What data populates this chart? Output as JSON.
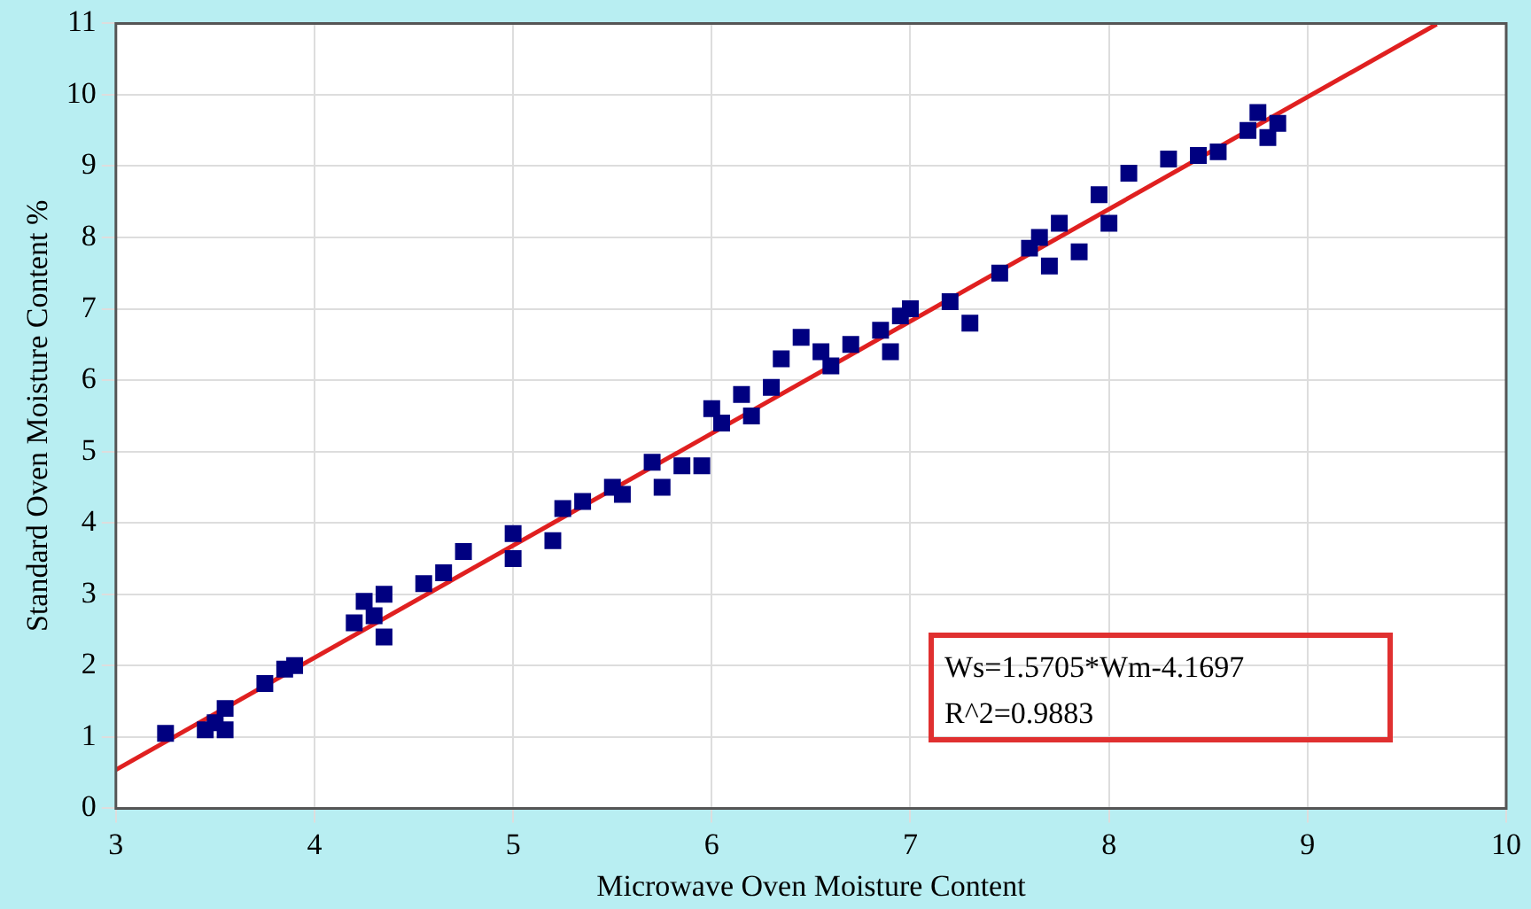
{
  "chart_data": {
    "type": "scatter",
    "xlabel": "Microwave Oven Moisture Content",
    "ylabel": "Standard Oven Moisture Content %",
    "xlim": [
      3,
      10
    ],
    "xticks": [
      3,
      4,
      5,
      6,
      7,
      8,
      9,
      10
    ],
    "ylim": [
      0,
      11
    ],
    "yticks": [
      0,
      1,
      2,
      3,
      4,
      5,
      6,
      7,
      8,
      9,
      10,
      11
    ],
    "grid": true,
    "legend": false,
    "annotations": [
      "Ws=1.5705*Wm-4.1697",
      "R^2=0.9883"
    ],
    "series": [
      {
        "marker": "square",
        "color": "#000080",
        "x": [
          3.25,
          3.45,
          3.5,
          3.55,
          3.55,
          3.75,
          3.85,
          3.9,
          4.2,
          4.25,
          4.3,
          4.35,
          4.35,
          4.55,
          4.65,
          4.75,
          5.0,
          5.0,
          5.2,
          5.25,
          5.35,
          5.5,
          5.55,
          5.7,
          5.75,
          5.85,
          5.95,
          6.0,
          6.05,
          6.15,
          6.2,
          6.3,
          6.35,
          6.45,
          6.55,
          6.6,
          6.7,
          6.85,
          6.9,
          6.95,
          7.0,
          7.2,
          7.3,
          7.45,
          7.6,
          7.65,
          7.7,
          7.75,
          7.85,
          7.95,
          8.0,
          8.1,
          8.3,
          8.45,
          8.55,
          8.7,
          8.75,
          8.85,
          8.8
        ],
        "values": [
          1.05,
          1.1,
          1.2,
          1.4,
          1.1,
          1.75,
          1.95,
          2.0,
          2.6,
          2.9,
          2.7,
          3.0,
          2.4,
          3.15,
          3.3,
          3.6,
          3.5,
          3.85,
          3.75,
          4.2,
          4.3,
          4.5,
          4.4,
          4.85,
          4.5,
          4.8,
          4.8,
          5.6,
          5.4,
          5.8,
          5.5,
          5.9,
          6.3,
          6.6,
          6.4,
          6.2,
          6.5,
          6.7,
          6.4,
          6.9,
          7.0,
          7.1,
          6.8,
          7.5,
          7.85,
          8.0,
          7.6,
          8.2,
          7.8,
          8.6,
          8.2,
          8.9,
          9.1,
          9.15,
          9.2,
          9.5,
          9.75,
          9.6,
          9.4
        ]
      },
      {
        "type": "line",
        "marker": "none",
        "line_style": "solid",
        "color": "#e02020",
        "x": [
          3,
          9.65
        ],
        "values": [
          0.54,
          10.99
        ]
      }
    ]
  }
}
